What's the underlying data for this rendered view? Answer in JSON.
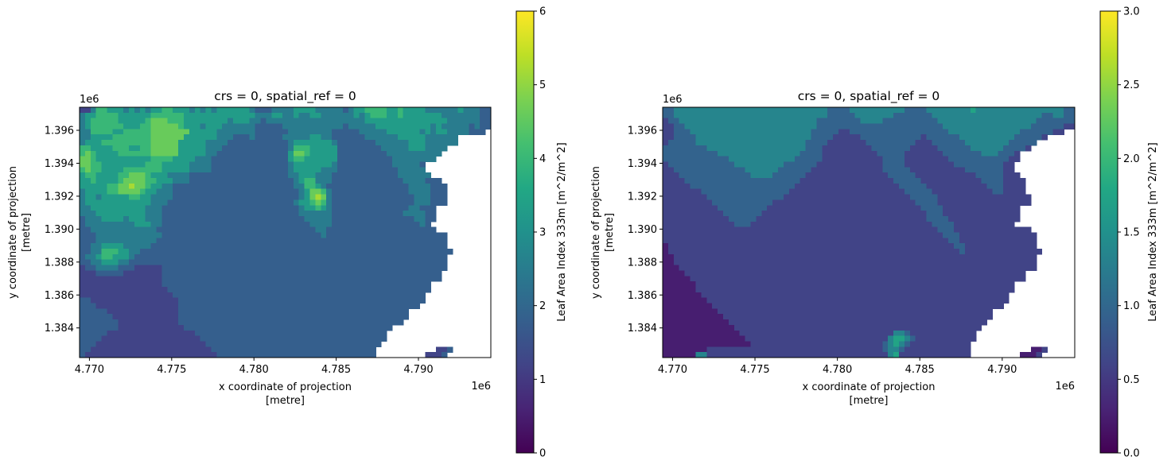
{
  "chart_data": [
    {
      "type": "heatmap",
      "title": "crs = 0, spatial_ref = 0",
      "xlabel": [
        "x coordinate of projection",
        "[metre]"
      ],
      "ylabel": [
        "y coordinate of projection",
        "[metre]"
      ],
      "x_offset_label": "1e6",
      "y_offset_label": "1e6",
      "xlim": [
        4.7694,
        4.7944
      ],
      "ylim": [
        1.3822,
        1.3974
      ],
      "x_ticks": [
        4.77,
        4.775,
        4.78,
        4.785,
        4.79
      ],
      "x_tick_labels": [
        "4.770",
        "4.775",
        "4.780",
        "4.785",
        "4.790"
      ],
      "y_ticks": [
        1.384,
        1.386,
        1.388,
        1.39,
        1.392,
        1.394,
        1.396
      ],
      "y_tick_labels": [
        "1.384",
        "1.386",
        "1.388",
        "1.390",
        "1.392",
        "1.394",
        "1.396"
      ],
      "colormap": "viridis",
      "colorbar": {
        "label": "Leaf Area Index 333m [m^2/m^2]",
        "range": [
          0,
          6
        ],
        "ticks": [
          0,
          1,
          2,
          3,
          4,
          5,
          6
        ],
        "tick_labels": [
          "0",
          "1",
          "2",
          "3",
          "4",
          "5",
          "6"
        ]
      },
      "grid_size": [
        75,
        46
      ],
      "values": [
        "BBDFFEEEDEDEDEEFFEEEDEDEDEEEEEEDCCCDDDDEEEEDDDDDCDEEFFFFEEFEEEEDDDDDDEDDDCC",
        "DEEFFFFEEEEEEFFFFFFEEEEEEEEEEEEEDDDEEDDEDDEEDDDDDDEDEFFFEEFEEEEEEEDDDDDDDCC",
        "DEFFFFFEEEEEFGGGFFFEEEEEEEEDEEEDDCDDDDDDDDDDDDDDDDDDEEEEEEEEEEEEEEEDDDDDDCC",
        "DEFFFFFFEEEFFGGGGGFEEEDEEEDDDDDDCCCCCDDDDDDDDDDDCDDDDDEEEEEEEEEEDEDDDDDCDCC",
        "DDFFFFEEFFFFFGGGGGGGEEEEEDDDDDDDCCCCCCDDDDDDDDCCCCCDDDDDEEEEEEDEDEEDDDDCCC.",
        "DDEEEEFFFFFFFGGGGGGEEEEEEDDDCCCDCCCCCDDDDDEEDDCCCCCCDDDDDDEEEEEDDDDDD......",
        "DEEEFFFFFFFFFGGGGGEEEEEDDDDCCCCCCCCCCCDEEEEEEEDCCCCCCCDDDDDDEEEDDDDDD......",
        "FFEEEEFFFEEFFGGGGGEEEEEDDDCCCCCCCCCCCCDFFFEEEEECCCCCCCCDDDDDEEEDDDD........",
        "FGFEEEEFFFFFFGGGGGEEEEEDDCCCCCCCCCCCCCEGGFEEEEECCCCCCCCCDDDDDDDDDD.........",
        "GGFEEEEEEEEEEFFFFEEEEDDDCCCCCCCCCCCCCCEFFEEEEEECCCCCCCCCCDDDDDDDD..........",
        "GGFFEEEEEEEEFFFEEEEEDDDDCCCCCCCCCCCCCCDEEEEEEEDCCCCCCCCCCDDDDDC............",
        "FGFFEEEEFFFFFFFEEEEEDDDDCCCCCCCCCCCCCCDEEEEEDDDCCCCCCCCCCCDDDDD............",
        "EFFEEEEFFGGGFEEEDDDDCCCCCCCCCCCCCCCCCCDDEEEDDDCCCCCCCCCCCCDDDDDD...........",
        "EEFEEEEFGGGGFFEEEDDDCCCCCCCCCCCCCCCCCCCDEFFDDDCCCCCCCCCCCCCDDDDCCC.........",
        "EEEEEFFGGHGGFEEDDCCCCCCCCCCCCCCCCCCCCCCDDFFEDCCCCCCCCCCCCCCCDDDDCCC........",
        "DEEEEFFGGGGFEEDDDCCCCCCCCCCCCCCCCCCCCCCCDEGGFDCCCCCCCCCCCCCCDDDDCCC........",
        "DEEDEEEEEFFEEDDDDCCCCCCCCCCCCCCCCCCCCCCCDEGHGDCCCCCCCCCCCCCCCDDDCCC........",
        "DEEEEEEEEEEEEDDDCCCCCCCCCCCCCCCCCCCCCCCDEEFGFDCCCCCCCCCCCCCCCDDDCCC........",
        "DDEEEEEEEEEEDDDCCCCCCCCCCCCCCCCCCCCCCCCCDEEFEDCCCCCCCCCCCCCCDDCCC..........",
        "DDDEEEEEEEEEDDDCCCCCCCCCCCCCCCCCCCCCCCCCDDDDDDCCCCCCCCCCCCCDDDDCC..........",
        "CDDDEEEEDEEEDDDCCCCCCCCCCCCCCCCCCCCCCCCCCDDDDDCCCCCCCCCCCCCCCDDCC..........",
        "CDDDDDDDDDEEEDDCCCCCCCCCCCCCCCCCCCCCCCCCCCDDDDCCCCCCCCCCCCCCCCDC...........",
        "CCDDDDDDDDDDDDCCCCCCCCCCCCCCCCCCCCCCCCCCCCCDDCCCCCCCCCCCCCCCCCCCC..........",
        "CCCDDDDDDDDDDDDCCCCCCCCCCCCCCCCCCCCCCCCCCCCCDCCCCCCCCCCCCCCCCCCCCCC........",
        "CCCDDDDDDDDDDDCCCCCCCCCCCCCCCCCCCCCCCCCCCCCCCCCCCCCCCCCCCCCCCCCCCCC........",
        "CCDDEEEEDDDDDCCCCCCCCCCCCCCCCCCCCCCCCCCCCCCCCCCCCCCCCCCCCCCCCCCCCCC........",
        "CCDDFFFEEDDCCCCCCCCCCCCCCCCCCCCCCCCCCCCCCCCCCCCCCCCCCCCCCCCCCCCCCCCC.......",
        "CDDEFFEEEDCCCCCCCCCCCCCCCCCCCCCCCCCCCCCCCCCCCCCCCCCCCCCCCCCCCCCCCCC........",
        "CCDDEEEDDCCCCCCCCCCCCCCCCCCCCCCCCCCCCCCCCCCCCCCCCCCCCCCCCCCCCCCCCCC........",
        "BCCDDDDCCCBBBBBCCCCCCCCCCCCCCCCCCCCCCCCCCCCCCCCCCCCCCCCCCCCCCCCCCCC........",
        "BBBCCCCCBBBBBBBCCCCCCCCCCCCCCCCCCCCCCCCCCCCCCCCCCCCCCCCCCCCCCCCCCC.........",
        "BBBBBBBBBBBBBBBCCCCCCCCCCCCCCCCCCCCCCCCCCCCCCCCCCCCCCCCCCCCCCCCCCC.........",
        "BBBBBBBBBBBBBBBCCCCCCCCCCCCCCCCCCCCCCCCCCCCCCCCCCCCCCCCCCCCCCCCC...........",
        "BBBBBBBBBBBBBBBBCCCCCCCCCCCCCCCCCCCCCCCCCCCCCCCCCCCCCCCCCCCCCCCC...........",
        "BBBBBBBBBBBBBBBBBCCCCCCCCCCCCCCCCCCCCCCCCCCCCCCCCCCCCCCCCCCCCCC............",
        "CCBBBBBBBBBBBBBBBBCCCCCCCCCCCCCCCCCCCCCCCCCCCCCCCCCCCCCCCCCCCCC............",
        "CCCBBBBBBBBBBBBBBBCCCCCCCCCCCCCCCCCCCCCCCCCCCCCCCCCCCCCCCCCCCC.............",
        "CCCCCBBBBBBBBBBBBBCCCCCCCCCCCCCCCCCCCCCCCCCCCCCCCCCCCCCCCCCC...............",
        "CCCCCCBBBBBBBBBBBBCCCCCCCCCCCCCCCCCCCCCCCCCCCCCCCCCCCCCCCCCC...............",
        "CCCCCCCBBBBBBBBBBBCCCCCCCCCCCCCCCCCCCCCCCCCCCCCCCCCCCCCCCCC................",
        "CCCCCCCBBBBBBBBBBBBCCCCCCCCCCCCCCCCCCCCCCCCCCCCCCCCCCCCCC..................",
        "CCCCCBBBBBBBBBBBBBBBBCCCCCCCCCCCCCCCCCCCCCCCCCCCCCCCCCCC...................",
        "CCCCBBBBBBBBBBBBBBBBBBCCCCCCCCCCCCCCCCCCCCCCCCCCCCCCCCCC...................",
        "CCCBBBBBBBBBBBBBBBBBBBBCCCCCCCCCCCCCCCCCCCCCCCCCCCCCCCC....................",
        "CCBBBBBBBBBBBBBBBBBBBBBBCCCCCCCCCCCCCCCCCCCCCCCCCCCCCC...........BBC.......",
        "CBBBBBBBBBBBBBBBBBBBBBBBBCCCCCCCCCCCCCCCCCCCCCCCCCCCCC.........BBBC........"
      ],
      "value_code_map": {
        ".": null,
        "A": 0.5,
        "B": 1.2,
        "C": 1.8,
        "D": 2.5,
        "E": 3.3,
        "F": 4.0,
        "G": 4.6,
        "H": 5.2
      }
    },
    {
      "type": "heatmap",
      "title": "crs = 0, spatial_ref = 0",
      "xlabel": [
        "x coordinate of projection",
        "[metre]"
      ],
      "ylabel": [
        "y coordinate of projection",
        "[metre]"
      ],
      "x_offset_label": "1e6",
      "y_offset_label": "1e6",
      "xlim": [
        4.7694,
        4.7944
      ],
      "ylim": [
        1.3822,
        1.3974
      ],
      "x_ticks": [
        4.77,
        4.775,
        4.78,
        4.785,
        4.79
      ],
      "x_tick_labels": [
        "4.770",
        "4.775",
        "4.780",
        "4.785",
        "4.790"
      ],
      "y_ticks": [
        1.384,
        1.386,
        1.388,
        1.39,
        1.392,
        1.394,
        1.396
      ],
      "y_tick_labels": [
        "1.384",
        "1.386",
        "1.388",
        "1.390",
        "1.392",
        "1.394",
        "1.396"
      ],
      "colormap": "viridis",
      "colorbar": {
        "label": "Leaf Area Index 333m [m^2/m^2]",
        "range": [
          0.0,
          3.0
        ],
        "ticks": [
          0.0,
          0.5,
          1.0,
          1.5,
          2.0,
          2.5,
          3.0
        ],
        "tick_labels": [
          "0.0",
          "0.5",
          "1.0",
          "1.5",
          "2.0",
          "2.5",
          "3.0"
        ]
      },
      "grid_size": [
        75,
        46
      ],
      "values": [
        "CCDDDDDDDDDDDDDDDDDDDDDDDDDDDDCCCCDDDDDDDDDDCCCCDDDDDDDDEDDDDDDDDDDDDDDDDCC",
        "CCDDDDDDDDDDDDDDDDDDDDDDDDDDDDCCCCCDDDDDDDCCCCCCCDDDDDDDDDDDDDDDDDDDDCCDDCC",
        "BCCDDDDDDDDDDDDDDDDDDDDDDDDDCCCCCCCCDDDDCCCCCCCCCCDDDDDDDDDDDDDDDDDDCCCCCCC",
        "BBCCDDDDDDDDDDDDDDDDDDDDDDDDCCCCCCCCCCCCCCCCCCCCCCCDDDDDDDDDDDDDDDDCCCCCCBB",
        "BBCCCDDDDDDDDDDDDDDDDDDDDDDCCCCCBBCCCCCCCCCCCCCCCCCCDDDDDDDDDDDDDCCCCCCBB..",
        "BBCCCCDDDDDDDDDDDDDDDDDDDDDCCCCBBBBBCCCCCCCCCCCBCCCCCCDDDDDDDDDDCCCCCB.....",
        "BCCCCCDDDDDDDDDDDDDDDDDDDDCCCCBBBBBBBCCCCCCCCCBBBCCCCCCDDDDDDDDCCCCC.......",
        "CCCCCCCCDDDDDDDDDDDDDDDDDDCCCBBBBBBBBBCCCCCCCBBBBBCCCCCCDDDDDDCCCCB........",
        "CCCCCCCCCCDDDDDDDDDDDDDDDCCCCBBBBBBBBBBCCCCCBBBBBBBCCCCCCCDDDCCCB..........",
        "CCCCCCCCCCCCDDDDDDDDDDDDCCCCCBBBBBBBBBBBCCCCBBBBBBBBCCCCCCCCCCCBB..........",
        "BCCCCCCCCCCCCDDDDDDDDDCCCCCCBBBBBBBBBBBBCCCCBBBBBBBBBCCCCCCCCCBB...........",
        "BBCCCCCCCCCCCCCDDDDDDCCCCCCBBBBBBBBBBBBBCCCCCBBBBBBBBBBCCCCCCCBB...........",
        "BBBCCCCCCCCCCCCCDDDDCCCCCCBBBBBBBBBBBBBBBCCCCCBBBBBBBBBBBCCCCCBBB..........",
        "BBBBCCCCCCCCCCCCCCCCCCCCCBBBBBBBBBBBBBBBBBCCCCCBBBBBBBBBBBCCCCBBBB........",
        "BBBBBCCCCCCCCCCCCCCCCCCCBBBBBBBBBBBBBBBBBBBCCCCCBBBBBBBBBBBCCCBBBB........",
        "BBBBBBBCCCCCCCCCCCCCCCCBBBBBBBBBBBBBBBBBBBBBCCCCCBBBBBBBBBBBCCBBBB........",
        "BBBBBBBBCCCCCCCCCCCCCCBBBBBBBBBBBBBBBBBBBBBBBCCCCCBBBBBBBBBBBBBBBBB........",
        "BBBBBBBBBCCCCCCCCCCCBBBBBBBBBBBBBBBBBBBBBBBBBBCCCCBBBBBBBBBBBBBBBBB........",
        "BBBBBBBBBBCCCCCCCCCBBBBBBBBBBBBBBBBBBBBBBBBBBBBCCCCBBBBBBBBBBBBBB..........",
        "BBBBBBBBBBBCCCCCCCBBBBBBBBBBBBBBBBBBBBBBBBBBBBBBCCCBBBBBBBBBBBBBB..........",
        "BBBBBBBBBBBBCCCCCBBBBBBBBBBBBBBBBBBBBBBBBBBBBBBBCCCCBBBBBBBBBBBBB..........",
        "BBBBBBBBBBBBBCCCBBBBBBBBBBBBBBBBBBBBBBBBBBBBBBBBBCCCCBBBBBBBBBBB...........",
        "BBBBBBBBBBBBBBBBBBBBBBBBBBBBBBBBBBBBBBBBBBBBBBBBBBCCCBBBBBBBBBBBBBB........",
        "BBBBBBBBBBBBBBBBBBBBBBBBBBBBBBBBBBBBBBBBBBBBBBBBBBBCCCBBBBBBBBBBBBBB.......",
        "BBBBBBBBBBBBBBBBBBBBBBBBBBBBBBBBBBBBBBBBBBBBBBBBBBBBCCBBBBBBBBBBBBBB.......",
        "ABBBBBBBBBBBBBBBBBBBBBBBBBBBBBBBBBBBBBBBBBBBBBBBBBBBBCCBBBBBBBBBBBBB.......",
        "ABBBBBBBBBBBBBBBBBBBBBBBBBBBBBBBBBBBBBBBBBBBBBBBBBBBBBCBBBBBBBBBBBBBB......",
        "AABBBBBBBBBBBBBBBBBBBBBBBBBBBBBBBBBBBBBBBBBBBBBBBBBBBBBBBBBBBBBBBBBB.......",
        "AABBBBBBBBBBBBBBBBBBBBBBBBBBBBBBBBBBBBBBBBBBBBBBBBBBBBBBBBBBBBBBBBBB.......",
        "AAABBBBBBBBBBBBBBBBBBBBBBBBBBBBBBBBBBBBBBBBBBBBBBBBBBBBBBBBBBBBBBBBB.......",
        "AAAABBBBBBBBBBBBBBBBBBBBBBBBBBBBBBBBBBBBBBBBBBBBBBBBBBBBBBBBBBBBBB.........",
        "AAAAABBBBBBBBBBBBBBBBBBBBBBBBBBBBBBBBBBBBBBBBBBBBBBBBBBBBBBBBBBBBB.........",
        "AAAAAABBBBBBBBBBBBBBBBBBBBBBBBBBBBBBBBBBBBBBBBBBBBBBBBBBBBBBBBBB...........",
        "AAAAAABBBBBBBBBBBBBBBBBBBBBBBBBBBBBBBBBBBBBBBBBBBBBBBBBBBBBBBBBB...........",
        "AAAAAAABBBBBBBBBBBBBBBBBBBBBBBBBBBBBBBBBBBBBBBBBBBBBBBBBBBBBBBB............",
        "AAAAAAAABBBBBBBBBBBBBBBBBBBBBBBBBBBBBBBBBBBBBBBBBBBBBBBBBBBBBBB............",
        "AAAAAAAAABBBBBBBBBBBBBBBBBBBBBBBBBBBBBBBBBBBBBBBBBBBBBBBBBBBBB.............",
        "AAAAAAAAAABBBBBBBBBBBBBBBBBBBBBBBBBBBBBBBBBBBBBBBBBBBBBBBBBB...............",
        "AAAAAAAAAAABBBBBBBBBBBBBBBBBBBBBBBBBBBBBBBBBBBBBBBBBBBBBBBBB...............",
        "AAAAAAAAAAAABBBBBBBBBBBBBBBBBBBBBBBBBBBBBBBBBBBBBBBBBBBBBBB................",
        "AAAAAAAAAAAAABBBBBBBBBBBBBBBBBBBBBBBBBBBBBBBBBBBBBBBBBBBBB..................",
        "AAAAAAAAAAAAAABBBBBBBBBBBBBBBBBBBBBBBBBBBBDDCBBBBBBBBBBBB...................",
        "AAAAAAAAAAAAAAABBBBBBBBBBBBBBBBBBBBBBBBBBDEEDCBBBBBBBBBBB...................",
        "AAAAAAAAAAAAAAAABBBBBBBBBBBBBBBBBBBBBBBBCDEDCBBBBBBBBBBB....................",
        "AAAAAAAABBBBBBBBBBBBBBBBBBBBBBBBBBBBBBBBCDDCBBBBBBBBBBBB...........AAB.......",
        "AAAAAADDBBBBBBBBBBBBBBBBBBBBBBBBBBBBBBBBBDEBBBBBBBBBBBBB.........AAAB........"
      ],
      "value_code_map": {
        ".": null,
        "A": 0.25,
        "B": 0.6,
        "C": 0.95,
        "D": 1.35,
        "E": 1.75,
        "F": 2.15,
        "G": 2.5,
        "H": 2.8
      }
    }
  ]
}
